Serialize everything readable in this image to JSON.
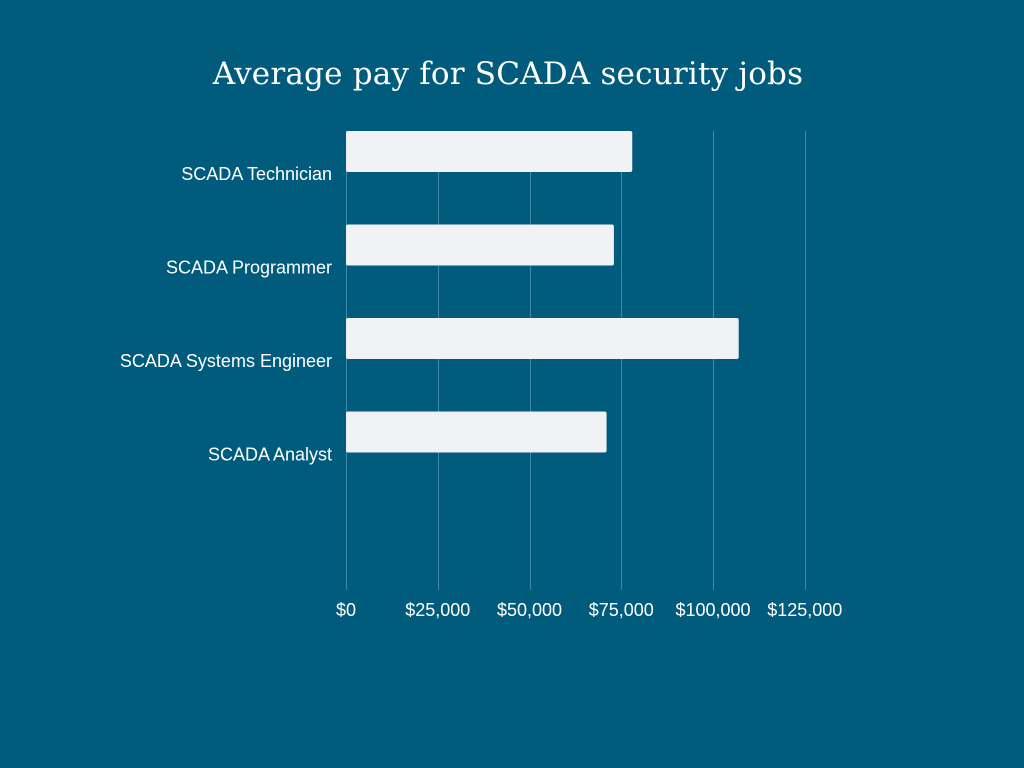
{
  "chart_data": {
    "type": "bar",
    "orientation": "horizontal",
    "title": "Average pay for SCADA security jobs",
    "xlabel": "",
    "ylabel": "",
    "categories": [
      "SCADA Technician",
      "SCADA Programmer",
      "SCADA Systems Engineer",
      "SCADA Analyst"
    ],
    "values": [
      78000,
      73000,
      107000,
      71000
    ],
    "xlim": [
      0,
      125000
    ],
    "x_ticks": [
      0,
      25000,
      50000,
      75000,
      100000,
      125000
    ],
    "x_tick_labels": [
      "$0",
      "$25,000",
      "$50,000",
      "$75,000",
      "$100,000",
      "$125,000"
    ],
    "grid": "vertical",
    "legend": "none",
    "colors": {
      "background": "#005b7d",
      "bar": "#f1f2f5",
      "grid": "#3f8aa6",
      "text": "#ffffff"
    }
  }
}
